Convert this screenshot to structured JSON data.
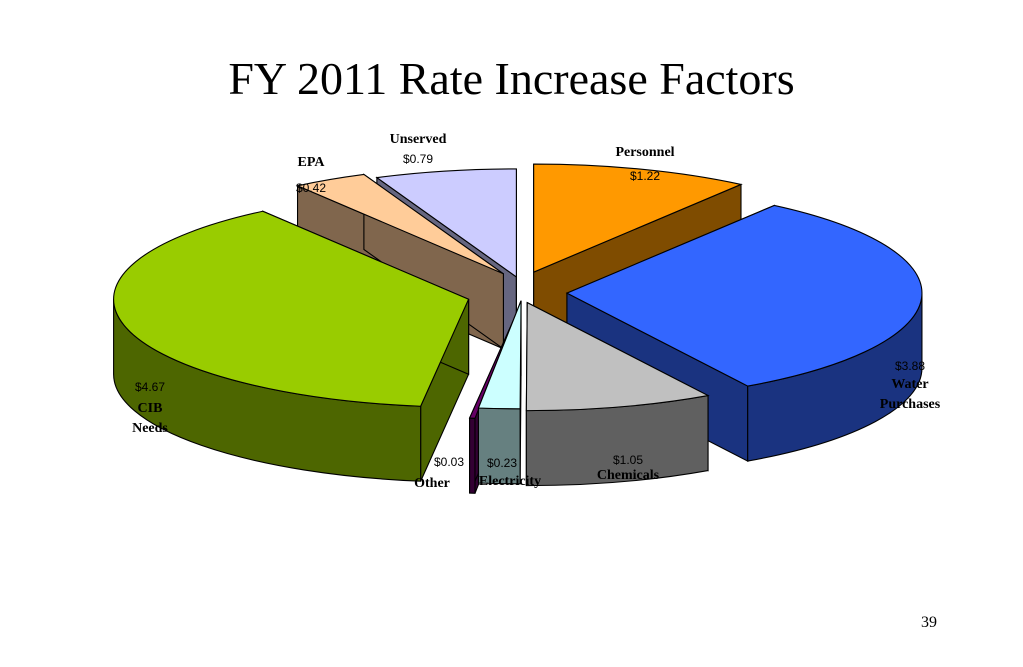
{
  "slide": {
    "title": "FY 2011 Rate Increase Factors",
    "page_number": "39"
  },
  "chart_data": {
    "type": "pie",
    "style": "3d-exploded",
    "title": "",
    "slices": [
      {
        "name": "Personnel",
        "display_value": "$1.22",
        "value": 1.22,
        "color": "#ff9900",
        "side_color": "#7f4c00"
      },
      {
        "name": "Water Purchases",
        "display_value": "$3.88",
        "value": 3.88,
        "color": "#3366ff",
        "side_color": "#1a3380"
      },
      {
        "name": "Chemicals",
        "display_value": "$1.05",
        "value": 1.05,
        "color": "#c0c0c0",
        "side_color": "#606060"
      },
      {
        "name": "Electricity",
        "display_value": "$0.23",
        "value": 0.23,
        "color": "#ccffff",
        "side_color": "#668080"
      },
      {
        "name": "Other",
        "display_value": "$0.03",
        "value": 0.03,
        "color": "#660066",
        "side_color": "#330033"
      },
      {
        "name": "CIB Needs",
        "display_value": "$4.67",
        "value": 4.67,
        "color": "#99cc00",
        "side_color": "#4d6600"
      },
      {
        "name": "EPA",
        "display_value": "$0.42",
        "value": 0.42,
        "color": "#ffcc99",
        "side_color": "#80664d"
      },
      {
        "name": "Unserved",
        "display_value": "$0.79",
        "value": 0.79,
        "color": "#ccccff",
        "side_color": "#666680"
      }
    ]
  }
}
